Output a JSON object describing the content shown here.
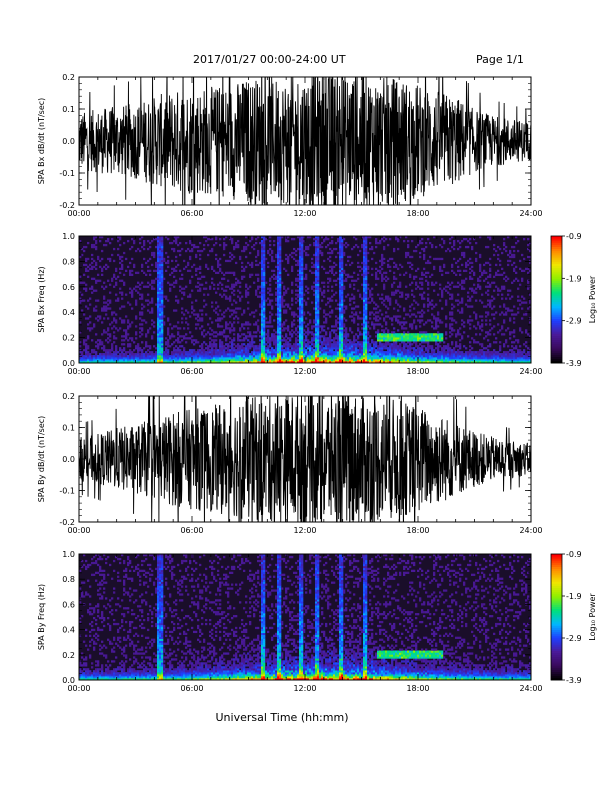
{
  "header": {
    "title": "2017/01/27  00:00-24:00 UT",
    "page": "Page 1/1"
  },
  "colors": {
    "trace": "#000000",
    "spectrogram_background": "#1a0e2a",
    "colormap": [
      "#000000",
      "#3a0a5e",
      "#4a1a9a",
      "#1f3fff",
      "#00b8ff",
      "#00e07a",
      "#8ef000",
      "#f0e800",
      "#ff8a00",
      "#ff0000"
    ]
  },
  "chart_data": [
    {
      "type": "line",
      "ylabel": "SPA Bx dB/dt (nT/sec)",
      "x_ticks": [
        "00:00",
        "06:00",
        "12:00",
        "18:00",
        "24:00"
      ],
      "xlim": [
        0,
        24
      ],
      "ylim": [
        -0.2,
        0.2
      ],
      "y_ticks": [
        "-0.2",
        "-0.1",
        "0.0",
        "0.1",
        "0.2"
      ],
      "x_unit": "hours UT",
      "envelope": {
        "hours": [
          0,
          1,
          2,
          3,
          4,
          5,
          6,
          7,
          8,
          9,
          10,
          11,
          12,
          13,
          14,
          15,
          16,
          17,
          18,
          19,
          20,
          21,
          22,
          23,
          24
        ],
        "amplitude": [
          0.09,
          0.1,
          0.11,
          0.12,
          0.14,
          0.16,
          0.17,
          0.17,
          0.18,
          0.2,
          0.2,
          0.2,
          0.22,
          0.22,
          0.22,
          0.22,
          0.2,
          0.2,
          0.18,
          0.16,
          0.14,
          0.1,
          0.08,
          0.07,
          0.06
        ]
      }
    },
    {
      "type": "heatmap",
      "ylabel": "SPA Bx Freq (Hz)",
      "x_ticks": [
        "00:00",
        "06:00",
        "12:00",
        "18:00",
        "24:00"
      ],
      "xlim": [
        0,
        24
      ],
      "ylim": [
        0,
        1.0
      ],
      "y_ticks": [
        "0.0",
        "0.2",
        "0.4",
        "0.6",
        "0.8",
        "1.0"
      ],
      "colorbar": {
        "label": "Log₁₀ Power",
        "ticks": [
          "-0.9",
          "-1.9",
          "-2.9",
          "-3.9"
        ],
        "range": [
          -3.9,
          -0.9
        ]
      },
      "bright_streak_hours": [
        4.3,
        9.8,
        10.6,
        11.8,
        12.6,
        13.9,
        15.2
      ],
      "band_hours": [
        15.8,
        19.3
      ],
      "band_freq_hz": 0.2
    },
    {
      "type": "line",
      "ylabel": "SPA By dB/dt (nT/sec)",
      "x_ticks": [
        "00:00",
        "06:00",
        "12:00",
        "18:00",
        "24:00"
      ],
      "xlim": [
        0,
        24
      ],
      "ylim": [
        -0.2,
        0.2
      ],
      "y_ticks": [
        "-0.2",
        "-0.1",
        "0.0",
        "0.1",
        "0.2"
      ],
      "x_unit": "hours UT",
      "envelope": {
        "hours": [
          0,
          1,
          2,
          3,
          4,
          5,
          6,
          7,
          8,
          9,
          10,
          11,
          12,
          13,
          14,
          15,
          16,
          17,
          18,
          19,
          20,
          21,
          22,
          23,
          24
        ],
        "amplitude": [
          0.07,
          0.08,
          0.1,
          0.11,
          0.13,
          0.15,
          0.16,
          0.17,
          0.18,
          0.2,
          0.2,
          0.21,
          0.22,
          0.22,
          0.22,
          0.21,
          0.2,
          0.19,
          0.17,
          0.15,
          0.12,
          0.09,
          0.07,
          0.06,
          0.05
        ]
      }
    },
    {
      "type": "heatmap",
      "ylabel": "SPA By Freq (Hz)",
      "x_ticks": [
        "00:00",
        "06:00",
        "12:00",
        "18:00",
        "24:00"
      ],
      "xlim": [
        0,
        24
      ],
      "ylim": [
        0,
        1.0
      ],
      "y_ticks": [
        "0.0",
        "0.2",
        "0.4",
        "0.6",
        "0.8",
        "1.0"
      ],
      "colorbar": {
        "label": "Log₁₀ Power",
        "ticks": [
          "-0.9",
          "-1.9",
          "-2.9",
          "-3.9"
        ],
        "range": [
          -3.9,
          -0.9
        ]
      },
      "bright_streak_hours": [
        4.3,
        9.8,
        10.6,
        11.8,
        12.6,
        13.9,
        15.2
      ],
      "band_hours": [
        15.8,
        19.3
      ],
      "band_freq_hz": 0.2
    }
  ],
  "xlabel": "Universal Time (hh:mm)"
}
